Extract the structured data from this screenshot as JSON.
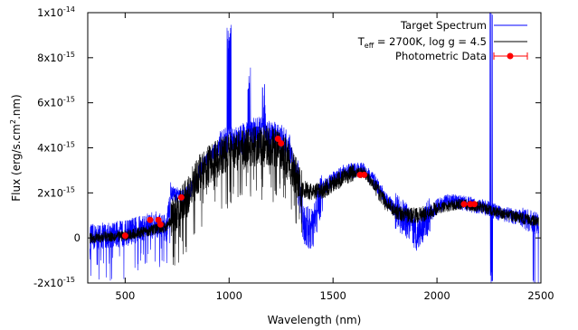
{
  "chart_data": {
    "type": "line",
    "xlabel": "Wavelength (nm)",
    "ylabel_parts": {
      "main": "Flux (erg/s.cm",
      "sup": "2",
      "tail": ".nm)"
    },
    "xlim": [
      320,
      2500
    ],
    "ylim": [
      -2e-15,
      1e-14
    ],
    "x_ticks": [
      {
        "value": 500,
        "label": "500"
      },
      {
        "value": 1000,
        "label": "1000"
      },
      {
        "value": 1500,
        "label": "1500"
      },
      {
        "value": 2000,
        "label": "2000"
      },
      {
        "value": 2500,
        "label": "2500"
      }
    ],
    "y_ticks": [
      {
        "value": -2e-15,
        "base": "-2x10",
        "exp": "-15"
      },
      {
        "value": 0,
        "base": "0",
        "exp": ""
      },
      {
        "value": 2e-15,
        "base": "2x10",
        "exp": "-15"
      },
      {
        "value": 4e-15,
        "base": "4x10",
        "exp": "-15"
      },
      {
        "value": 6e-15,
        "base": "6x10",
        "exp": "-15"
      },
      {
        "value": 8e-15,
        "base": "8x10",
        "exp": "-15"
      },
      {
        "value": 1e-14,
        "base": "1x10",
        "exp": "-14"
      }
    ],
    "grid": false,
    "legend_position": "top-right",
    "series": [
      {
        "name": "Target Spectrum",
        "color": "#0000ff",
        "kind": "noisy-line",
        "envelope": [
          [
            330,
            0.0
          ],
          [
            400,
            1e-16
          ],
          [
            500,
            2e-16
          ],
          [
            600,
            5e-16
          ],
          [
            650,
            6e-16
          ],
          [
            700,
            4e-16
          ],
          [
            720,
            2e-15
          ],
          [
            780,
            1.8e-15
          ],
          [
            820,
            2.2e-15
          ],
          [
            860,
            3e-15
          ],
          [
            900,
            3.6e-15
          ],
          [
            950,
            4e-15
          ],
          [
            1000,
            4.3e-15
          ],
          [
            1050,
            4.3e-15
          ],
          [
            1100,
            4.6e-15
          ],
          [
            1150,
            4.7e-15
          ],
          [
            1200,
            4.5e-15
          ],
          [
            1250,
            4.4e-15
          ],
          [
            1300,
            3.8e-15
          ],
          [
            1330,
            2.6e-15
          ],
          [
            1360,
            6e-16
          ],
          [
            1400,
            3e-16
          ],
          [
            1450,
            2.2e-15
          ],
          [
            1500,
            2.6e-15
          ],
          [
            1550,
            2.9e-15
          ],
          [
            1600,
            3e-15
          ],
          [
            1650,
            3e-15
          ],
          [
            1700,
            2.5e-15
          ],
          [
            1750,
            1.8e-15
          ],
          [
            1800,
            1.2e-15
          ],
          [
            1850,
            8e-16
          ],
          [
            1900,
            2e-16
          ],
          [
            1950,
            8e-16
          ],
          [
            2000,
            1.4e-15
          ],
          [
            2050,
            1.6e-15
          ],
          [
            2100,
            1.6e-15
          ],
          [
            2150,
            1.5e-15
          ],
          [
            2200,
            1.4e-15
          ],
          [
            2250,
            1.3e-15
          ],
          [
            2300,
            1.1e-15
          ],
          [
            2400,
            9e-16
          ],
          [
            2490,
            6e-16
          ]
        ]
      },
      {
        "name": "T_eff = 2700K, log g = 4.5",
        "color": "#000000",
        "kind": "noisy-line",
        "envelope": [
          [
            330,
            0.0
          ],
          [
            400,
            5e-17
          ],
          [
            500,
            1e-16
          ],
          [
            600,
            3e-16
          ],
          [
            650,
            4e-16
          ],
          [
            700,
            5e-16
          ],
          [
            750,
            1.2e-15
          ],
          [
            800,
            1.8e-15
          ],
          [
            850,
            2.8e-15
          ],
          [
            900,
            3.2e-15
          ],
          [
            950,
            3.6e-15
          ],
          [
            1000,
            3.8e-15
          ],
          [
            1050,
            3.9e-15
          ],
          [
            1100,
            4e-15
          ],
          [
            1150,
            4.1e-15
          ],
          [
            1200,
            4.1e-15
          ],
          [
            1250,
            3.9e-15
          ],
          [
            1300,
            3.2e-15
          ],
          [
            1350,
            2.2e-15
          ],
          [
            1400,
            2e-15
          ],
          [
            1450,
            2.1e-15
          ],
          [
            1500,
            2.4e-15
          ],
          [
            1550,
            2.7e-15
          ],
          [
            1600,
            2.9e-15
          ],
          [
            1650,
            2.9e-15
          ],
          [
            1700,
            2.3e-15
          ],
          [
            1750,
            1.6e-15
          ],
          [
            1800,
            1.2e-15
          ],
          [
            1850,
            1e-15
          ],
          [
            1900,
            1e-15
          ],
          [
            1950,
            1.1e-15
          ],
          [
            2000,
            1.3e-15
          ],
          [
            2100,
            1.5e-15
          ],
          [
            2200,
            1.4e-15
          ],
          [
            2300,
            1.1e-15
          ],
          [
            2400,
            9e-16
          ],
          [
            2490,
            7e-16
          ]
        ]
      },
      {
        "name": "Photometric Data",
        "color": "#ff0000",
        "kind": "points",
        "points": [
          {
            "x": 500,
            "y": 1e-16,
            "xerr": 0
          },
          {
            "x": 620,
            "y": 8e-16,
            "xerr": 0
          },
          {
            "x": 660,
            "y": 8e-16,
            "xerr": 0
          },
          {
            "x": 670,
            "y": 6e-16,
            "xerr": 0
          },
          {
            "x": 770,
            "y": 1.8e-15,
            "xerr": 0
          },
          {
            "x": 1235,
            "y": 4.4e-15,
            "xerr": 0
          },
          {
            "x": 1250,
            "y": 4.2e-15,
            "xerr": 0
          },
          {
            "x": 1630,
            "y": 2.8e-15,
            "xerr": 0
          },
          {
            "x": 1650,
            "y": 2.8e-15,
            "xerr": 0
          },
          {
            "x": 2130,
            "y": 1.5e-15,
            "xerr": 0
          },
          {
            "x": 2160,
            "y": 1.5e-15,
            "xerr": 0
          },
          {
            "x": 2180,
            "y": 1.5e-15,
            "xerr": 0
          }
        ]
      }
    ],
    "legend": {
      "entries": [
        {
          "label": "Target Spectrum"
        },
        {
          "label_parts": {
            "t": "T",
            "sub": "eff",
            "rest": " = 2700K, log g = 4.5"
          }
        },
        {
          "label": "Photometric Data"
        }
      ]
    }
  }
}
